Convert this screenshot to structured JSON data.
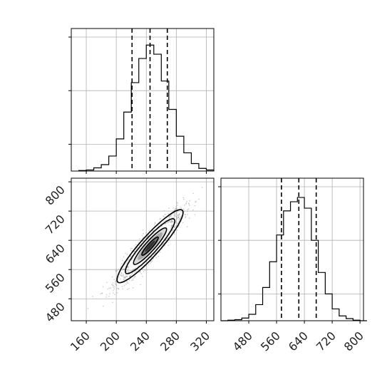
{
  "chart_data": {
    "type": "corner",
    "colors": {
      "line": "#000000",
      "grid": "#b0b0b0",
      "scatter": "#808080"
    },
    "grid": true,
    "panels": {
      "hist_x": {
        "type": "histogram",
        "xlim": [
          140,
          330
        ],
        "bin_edges": [
          150,
          160,
          170,
          180,
          190,
          200,
          210,
          220,
          230,
          240,
          250,
          260,
          270,
          280,
          290,
          300,
          310,
          320,
          330
        ],
        "counts": [
          1,
          2,
          6,
          12,
          28,
          60,
          110,
          165,
          210,
          235,
          218,
          168,
          115,
          65,
          34,
          14,
          5,
          2
        ],
        "quantiles": [
          221,
          245,
          268
        ],
        "y_ticks": [
          50,
          150,
          250
        ],
        "ylim": [
          0,
          250
        ]
      },
      "hist_y": {
        "type": "histogram",
        "xlim": [
          400,
          810
        ],
        "xticks": [
          480,
          560,
          640,
          720,
          800
        ],
        "bin_edges": [
          400,
          420,
          440,
          460,
          480,
          500,
          520,
          540,
          560,
          580,
          600,
          620,
          640,
          660,
          680,
          700,
          720,
          740,
          760,
          780,
          800,
          820
        ],
        "counts": [
          0,
          1,
          2,
          5,
          12,
          30,
          62,
          110,
          160,
          205,
          222,
          230,
          210,
          150,
          90,
          50,
          22,
          9,
          4,
          1,
          0
        ],
        "quantiles": [
          574,
          624,
          674
        ],
        "y_ticks": [
          50,
          150,
          250
        ],
        "ylim": [
          0,
          250
        ]
      },
      "joint": {
        "type": "scatter-density",
        "xlim": [
          140,
          330
        ],
        "ylim": [
          420,
          810
        ],
        "xticks": [
          160,
          200,
          240,
          280,
          320
        ],
        "yticks": [
          480,
          560,
          640,
          720,
          800
        ],
        "center": [
          245,
          624
        ],
        "std": [
          22,
          50
        ],
        "correlation": 0.92,
        "contour_levels_sigma": [
          0.5,
          1.0,
          1.5,
          2.0
        ]
      }
    }
  }
}
